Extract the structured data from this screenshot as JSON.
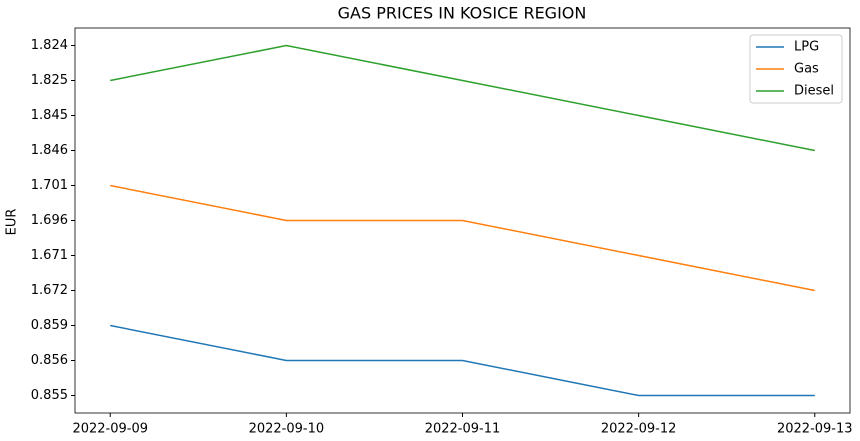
{
  "chart_data": {
    "type": "line",
    "title": "GAS PRICES IN KOSICE REGION",
    "y_label": "EUR",
    "categories": [
      "2022-09-09",
      "2022-09-10",
      "2022-09-11",
      "2022-09-12",
      "2022-09-13"
    ],
    "ycategories": [
      0.855,
      0.856,
      0.859,
      1.672,
      1.671,
      1.696,
      1.701,
      1.846,
      1.845,
      1.825,
      1.824
    ],
    "series": [
      {
        "name": "LPG",
        "color": "#1f77b4",
        "values": [
          0.859,
          0.856,
          0.856,
          0.855,
          0.855
        ]
      },
      {
        "name": "Gas",
        "color": "#ff7f0e",
        "values": [
          1.701,
          1.696,
          1.696,
          1.671,
          1.672
        ]
      },
      {
        "name": "Diesel",
        "color": "#2ca02c",
        "values": [
          1.825,
          1.824,
          1.825,
          1.845,
          1.846
        ]
      }
    ],
    "legend": "upper right"
  }
}
